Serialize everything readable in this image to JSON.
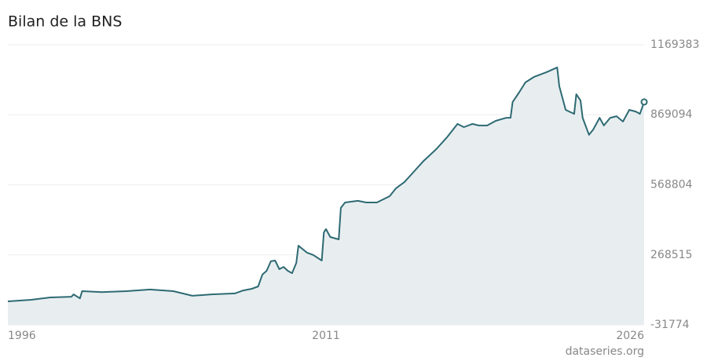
{
  "chart_data": {
    "type": "line",
    "title": "Bilan de la BNS",
    "source": "dataseries.org",
    "x": [
      1996.0,
      1997.1,
      1998.0,
      1999.0,
      1999.1,
      1999.4,
      1999.5,
      2000.4,
      2001.6,
      2002.7,
      2003.8,
      2004.7,
      2005.6,
      2006.7,
      2007.1,
      2007.5,
      2007.8,
      2008.0,
      2008.2,
      2008.4,
      2008.6,
      2008.8,
      2009.0,
      2009.2,
      2009.4,
      2009.6,
      2009.7,
      2010.1,
      2010.4,
      2010.8,
      2010.9,
      2011.0,
      2011.2,
      2011.6,
      2011.7,
      2011.9,
      2012.5,
      2012.9,
      2013.4,
      2014.0,
      2014.3,
      2014.7,
      2015.1,
      2015.6,
      2016.2,
      2016.7,
      2017.2,
      2017.5,
      2017.9,
      2018.2,
      2018.6,
      2019.0,
      2019.5,
      2019.7,
      2019.8,
      2020.1,
      2020.4,
      2020.8,
      2021.4,
      2021.9,
      2022.0,
      2022.3,
      2022.7,
      2022.8,
      2023.0,
      2023.1,
      2023.4,
      2023.6,
      2023.9,
      2024.1,
      2024.4,
      2024.7,
      2025.0,
      2025.3,
      2025.6,
      2025.8,
      2026.0
    ],
    "series": [
      {
        "color": "#2e6a73",
        "values": [
          69000,
          76000,
          86000,
          89000,
          99000,
          82000,
          113000,
          109000,
          113000,
          120000,
          113000,
          93000,
          99000,
          103000,
          116000,
          123000,
          133000,
          184000,
          200000,
          241000,
          244000,
          207000,
          217000,
          200000,
          190000,
          234000,
          308000,
          278000,
          268000,
          244000,
          365000,
          379000,
          345000,
          335000,
          470000,
          493000,
          500000,
          493000,
          493000,
          520000,
          554000,
          581000,
          621000,
          671000,
          722000,
          772000,
          830000,
          816000,
          830000,
          823000,
          823000,
          843000,
          856000,
          856000,
          924000,
          964000,
          1008000,
          1031000,
          1052000,
          1072000,
          991000,
          890000,
          873000,
          957000,
          930000,
          856000,
          783000,
          806000,
          856000,
          823000,
          856000,
          863000,
          840000,
          890000,
          883000,
          873000,
          924000
        ]
      }
    ],
    "xlim": [
      1996,
      2026
    ],
    "xticks": [
      1996,
      2011,
      2026
    ],
    "ylim": [
      -31774,
      1169383
    ],
    "yticks": [
      -31774,
      268515,
      568804,
      869094,
      1169383
    ],
    "grid": true,
    "area_color": "#e8eef0"
  }
}
